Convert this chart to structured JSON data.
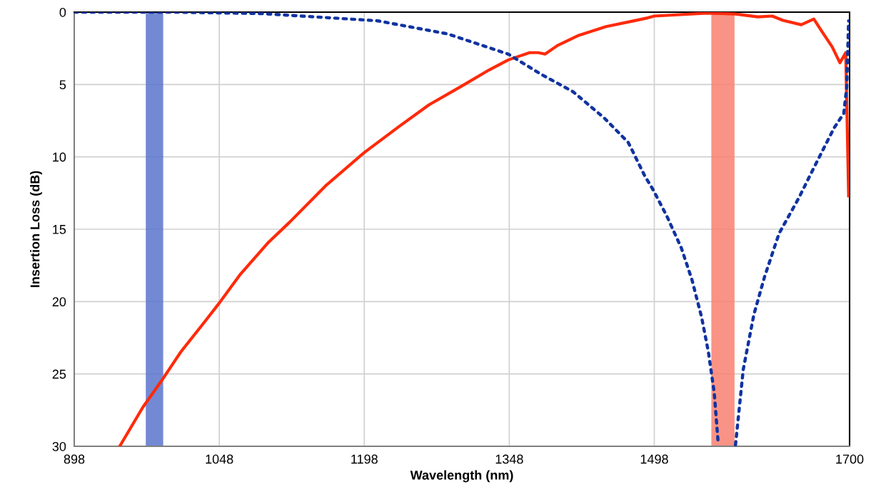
{
  "chart_data": {
    "type": "line",
    "xlabel": "Wavelength (nm)",
    "ylabel": "Insertion Loss (dB)",
    "xlim": [
      898,
      1700
    ],
    "xticks": [
      898,
      1048,
      1198,
      1348,
      1498,
      1700
    ],
    "ylim": [
      30,
      0
    ],
    "yticks": [
      0,
      5,
      10,
      15,
      20,
      25,
      30
    ],
    "grid": true,
    "marker": "none",
    "series": [
      {
        "color": "#ff2a0a",
        "line_style": "solid",
        "x": [
          945,
          969,
          988,
          1008,
          1034,
          1048,
          1070,
          1099,
          1121,
          1158,
          1198,
          1234,
          1265,
          1299,
          1327,
          1347,
          1369,
          1378,
          1385,
          1398,
          1420,
          1448,
          1477,
          1491,
          1498,
          1552,
          1582,
          1605,
          1620,
          1631,
          1650,
          1663,
          1672,
          1682,
          1690,
          1696,
          1699
        ],
        "values": [
          30,
          27.3,
          25.5,
          23.5,
          21.3,
          20.1,
          18.1,
          15.9,
          14.5,
          12,
          9.7,
          7.9,
          6.4,
          5.1,
          4,
          3.3,
          2.8,
          2.8,
          2.9,
          2.3,
          1.6,
          1,
          0.6,
          0.4,
          0.27,
          0.07,
          0.13,
          0.33,
          0.27,
          0.57,
          0.87,
          0.47,
          1.4,
          2.4,
          3.5,
          2.8,
          12.7
        ]
      },
      {
        "color": "#1033a0",
        "line_style": "dotted",
        "x": [
          898,
          999,
          1093,
          1212,
          1284,
          1347,
          1381,
          1414,
          1446,
          1471,
          1477,
          1488,
          1497,
          1511,
          1526,
          1537,
          1547,
          1554,
          1560,
          1564,
          1573,
          1582,
          1590,
          1601,
          1612,
          1627,
          1647,
          1665,
          1684,
          1694,
          1697,
          1699
        ],
        "values": [
          0,
          0,
          0.1,
          0.6,
          1.5,
          2.9,
          4.3,
          5.5,
          7.3,
          9,
          9.8,
          11.3,
          12.3,
          14.1,
          16.3,
          18.5,
          21.1,
          23.5,
          26.3,
          29.7,
          null,
          29.9,
          24.7,
          20.9,
          18.3,
          15.3,
          12.9,
          10.5,
          8,
          7,
          5.2,
          0.6
        ]
      }
    ],
    "bands": [
      {
        "axis": "x",
        "from": 972,
        "to": 990,
        "color": "#5a74cc"
      },
      {
        "axis": "x",
        "from": 1557,
        "to": 1581,
        "color": "#f88070"
      }
    ]
  }
}
